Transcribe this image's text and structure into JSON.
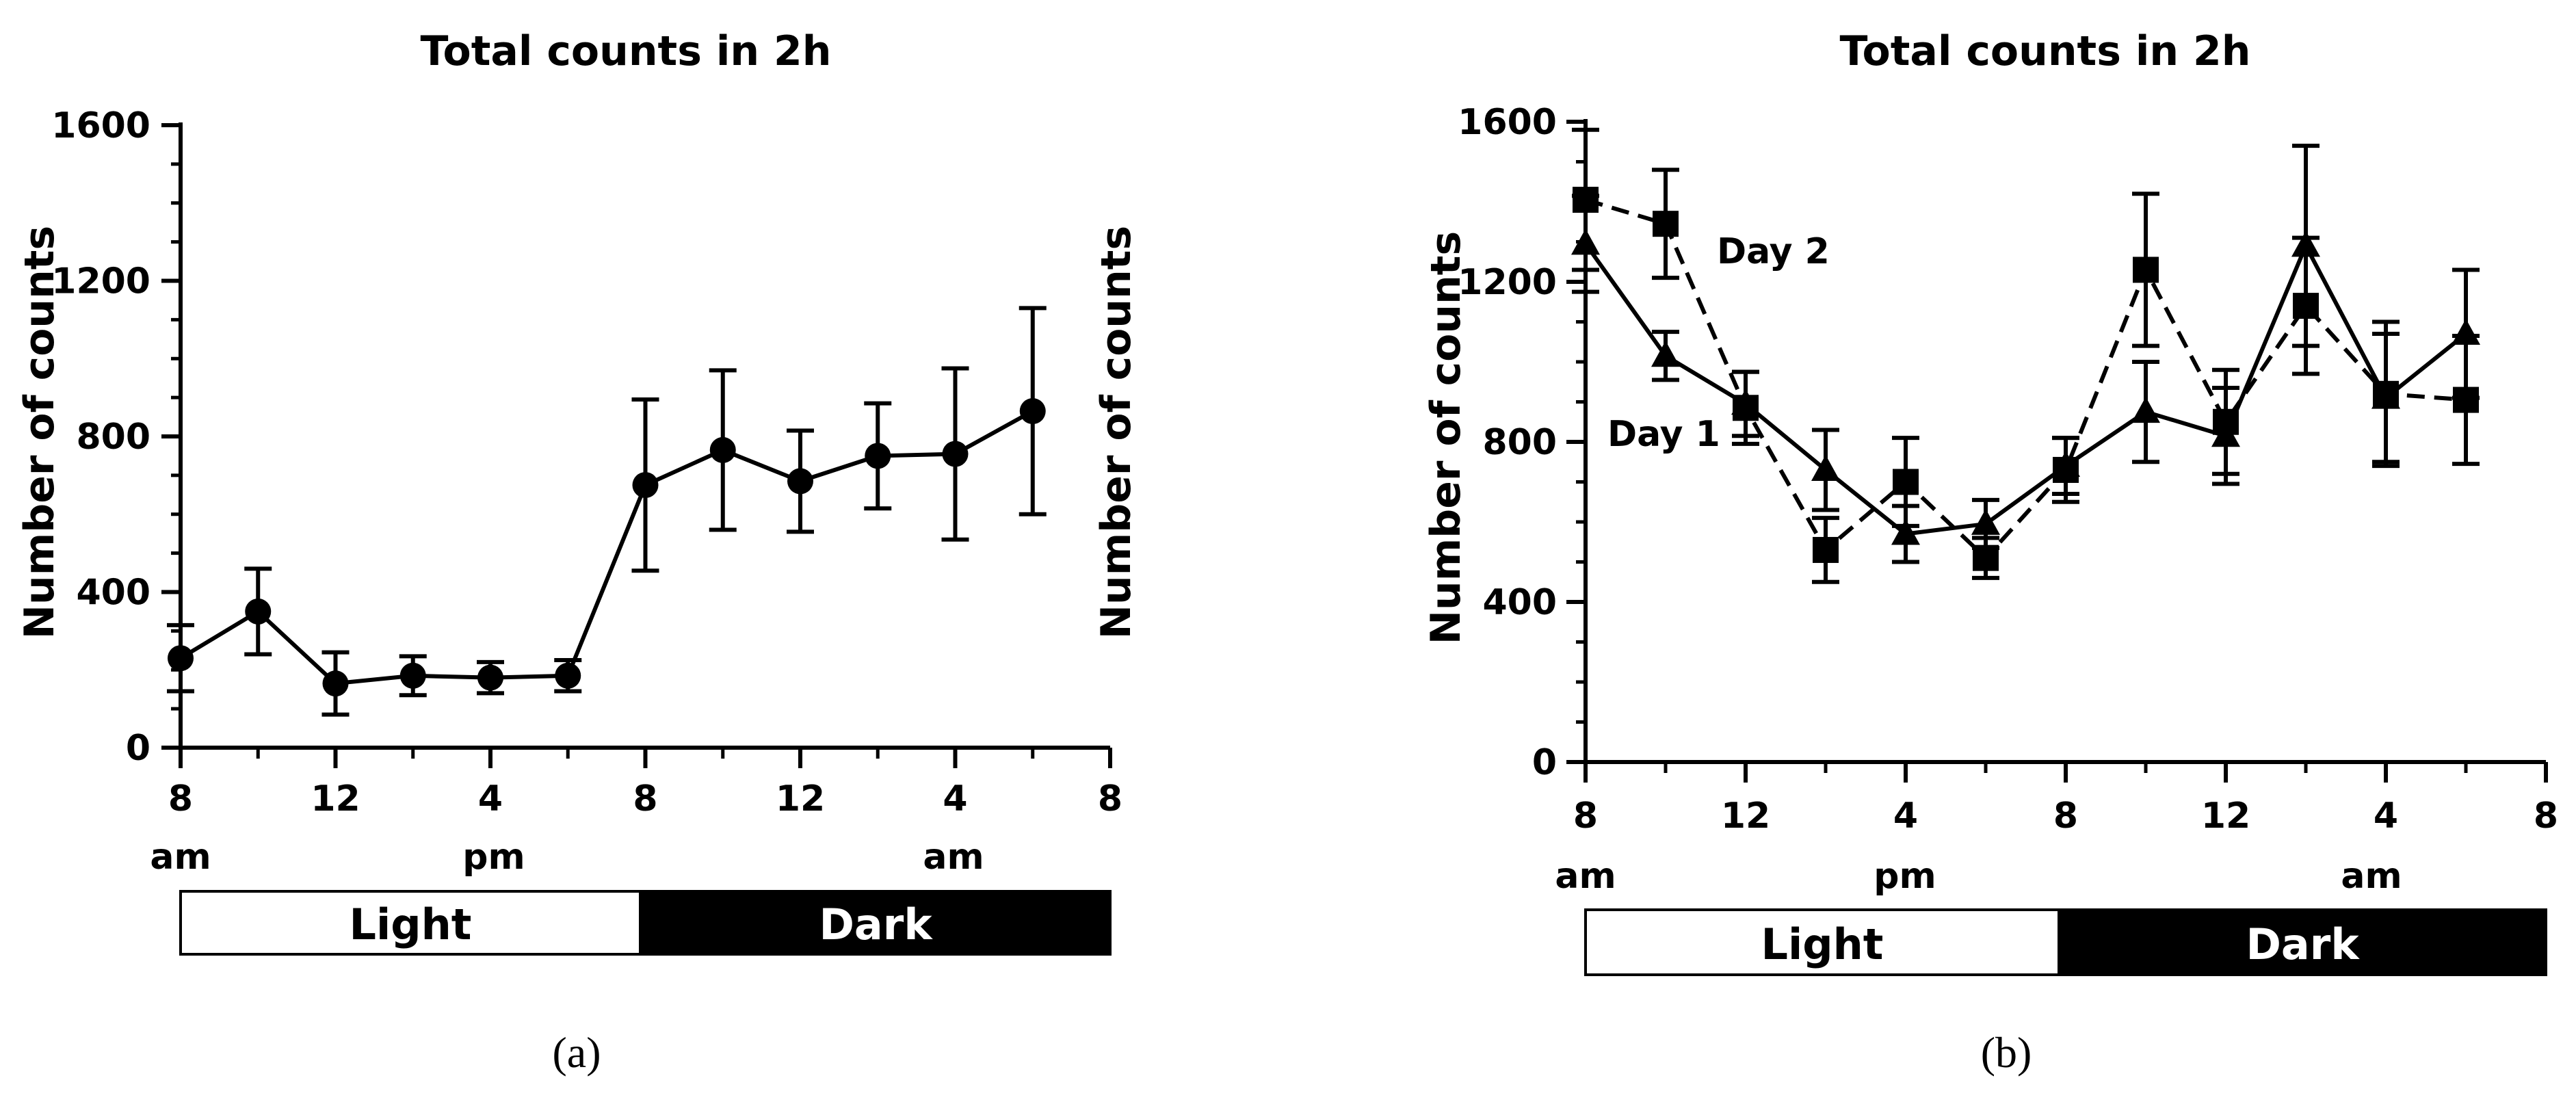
{
  "chart_data": [
    {
      "type": "line",
      "title": "Total counts in 2h",
      "xlabel": "",
      "ylabel": "Number of counts",
      "ylim": [
        0,
        1600
      ],
      "yticks": [
        "0",
        "400",
        "800",
        "1200",
        "1600"
      ],
      "xticks": [
        "8",
        "12",
        "4",
        "8",
        "12",
        "4",
        "8"
      ],
      "xsub": [
        "am",
        "pm",
        "am"
      ],
      "light_dark": [
        "Light",
        "Dark"
      ],
      "caption": "(a)",
      "x": [
        8,
        10,
        12,
        14,
        16,
        18,
        20,
        22,
        24,
        26,
        28,
        30
      ],
      "series": [
        {
          "name": "",
          "marker": "circle",
          "dash": false,
          "values": [
            230,
            350,
            165,
            185,
            180,
            185,
            675,
            765,
            685,
            750,
            755,
            865
          ],
          "err": [
            85,
            110,
            80,
            50,
            40,
            40,
            220,
            205,
            130,
            135,
            220,
            265
          ]
        }
      ]
    },
    {
      "type": "line",
      "title": "Total counts in 2h",
      "xlabel": "",
      "ylabel": "Number of counts",
      "ylim": [
        0,
        1600
      ],
      "yticks": [
        "0",
        "400",
        "800",
        "1200",
        "1600"
      ],
      "xticks": [
        "8",
        "12",
        "4",
        "8",
        "12",
        "4",
        "8"
      ],
      "xsub": [
        "am",
        "pm",
        "am"
      ],
      "light_dark": [
        "Light",
        "Dark"
      ],
      "caption": "(b)",
      "x": [
        8,
        10,
        12,
        14,
        16,
        18,
        20,
        22,
        24,
        26,
        28,
        30
      ],
      "series": [
        {
          "name": "Day 1",
          "marker": "triangle",
          "dash": false,
          "values": [
            1295,
            1015,
            895,
            730,
            570,
            595,
            740,
            875,
            815,
            1290,
            910,
            1070
          ],
          "err": [
            120,
            60,
            80,
            100,
            70,
            60,
            70,
            125,
            120,
            250,
            160,
            160
          ]
        },
        {
          "name": "Day 2",
          "marker": "square",
          "dash": true,
          "values": [
            1405,
            1345,
            885,
            530,
            700,
            510,
            730,
            1230,
            850,
            1140,
            920,
            905
          ],
          "err": [
            175,
            135,
            90,
            80,
            110,
            50,
            80,
            190,
            130,
            170,
            180,
            160
          ]
        }
      ]
    }
  ]
}
